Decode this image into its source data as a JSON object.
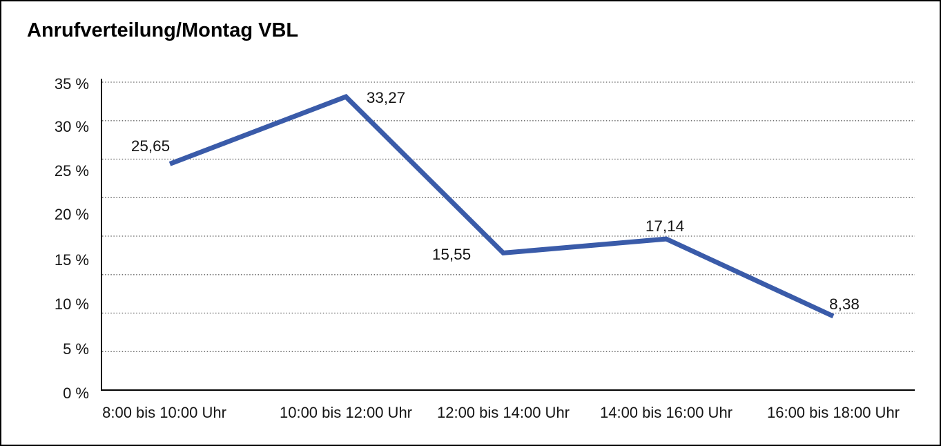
{
  "window": {
    "background_color": "#ffffff",
    "border_color": "#000000"
  },
  "chart_data": {
    "type": "line",
    "title": "Anrufverteilung/Montag VBL",
    "categories": [
      "8:00 bis 10:00 Uhr",
      "10:00 bis 12:00 Uhr",
      "12:00 bis 14:00 Uhr",
      "14:00 bis 16:00 Uhr",
      "16:00 bis 18:00 Uhr"
    ],
    "series": [
      {
        "values": [
          25.65,
          33.27,
          15.55,
          17.14,
          8.38
        ],
        "value_labels": [
          "25,65",
          "33,27",
          "15,55",
          "17,14",
          "8,38"
        ],
        "color": "#3A5BA9"
      }
    ],
    "xlabel": "",
    "ylabel": "",
    "ylim": [
      0,
      35
    ],
    "y_tick_labels": [
      "35 %",
      "30 %",
      "25 %",
      "20 %",
      "15 %",
      "10 %",
      "5 %",
      "0 %"
    ],
    "y_unit": "%",
    "decimal_separator": ",",
    "grid": "horizontal-dotted",
    "legend": "none",
    "line_style": "solid-thick-no-markers"
  }
}
